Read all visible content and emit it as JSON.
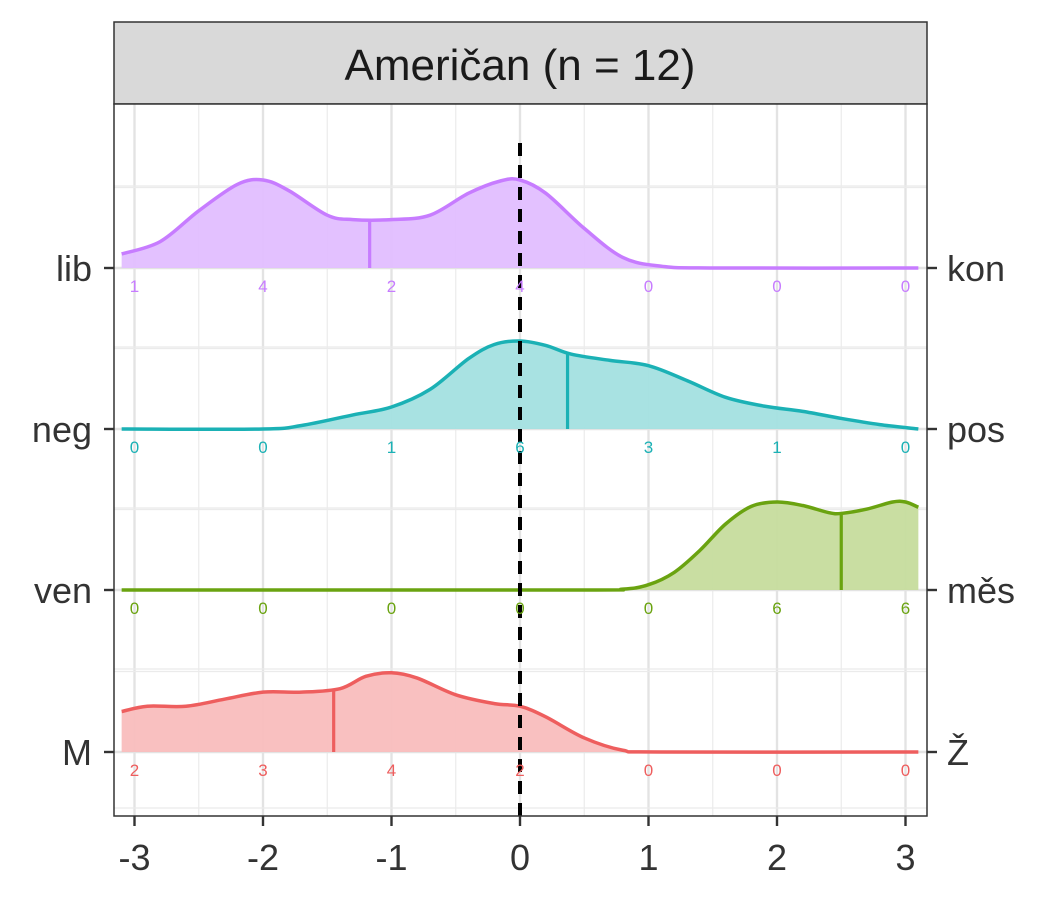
{
  "chart_data": {
    "type": "ridgeline",
    "title": "Američan (n = 12)",
    "xlim": [
      -3.1,
      3.1
    ],
    "x_ticks": [
      -3,
      -2,
      -1,
      0,
      1,
      2,
      3
    ],
    "x_tick_labels": [
      "-3",
      "-2",
      "-1",
      "0",
      "1",
      "2",
      "3"
    ],
    "reference_line_x": 0,
    "count_positions": [
      -3,
      -2,
      -1,
      0,
      1,
      2,
      3
    ],
    "rows": [
      {
        "name": "lib-kon",
        "left_label": "lib",
        "right_label": "kon",
        "color": "#C77CFF",
        "fill": "#E1BEFF",
        "mean": -1.17,
        "counts": [
          1,
          4,
          2,
          4,
          0,
          0,
          0
        ],
        "density": [
          [
            -3.1,
            0.16
          ],
          [
            -2.8,
            0.3
          ],
          [
            -2.5,
            0.65
          ],
          [
            -2.2,
            0.95
          ],
          [
            -2.0,
            1.0
          ],
          [
            -1.8,
            0.88
          ],
          [
            -1.5,
            0.6
          ],
          [
            -1.3,
            0.55
          ],
          [
            -1.0,
            0.55
          ],
          [
            -0.7,
            0.6
          ],
          [
            -0.4,
            0.85
          ],
          [
            -0.15,
            0.99
          ],
          [
            0.0,
            1.0
          ],
          [
            0.2,
            0.85
          ],
          [
            0.5,
            0.45
          ],
          [
            0.8,
            0.12
          ],
          [
            1.1,
            0.02
          ],
          [
            1.5,
            0.0
          ],
          [
            3.1,
            0.0
          ]
        ]
      },
      {
        "name": "neg-pos",
        "left_label": "neg",
        "right_label": "pos",
        "color": "#1BB1B5",
        "fill": "#A3E0E0",
        "mean": 0.37,
        "counts": [
          0,
          0,
          1,
          6,
          3,
          1,
          0
        ],
        "density": [
          [
            -3.1,
            0.0
          ],
          [
            -2.0,
            0.0
          ],
          [
            -1.7,
            0.04
          ],
          [
            -1.3,
            0.16
          ],
          [
            -1.0,
            0.25
          ],
          [
            -0.7,
            0.45
          ],
          [
            -0.4,
            0.8
          ],
          [
            -0.2,
            0.96
          ],
          [
            0.0,
            1.0
          ],
          [
            0.2,
            0.95
          ],
          [
            0.4,
            0.85
          ],
          [
            0.7,
            0.78
          ],
          [
            1.0,
            0.72
          ],
          [
            1.3,
            0.55
          ],
          [
            1.6,
            0.36
          ],
          [
            1.9,
            0.26
          ],
          [
            2.2,
            0.2
          ],
          [
            2.5,
            0.12
          ],
          [
            2.8,
            0.05
          ],
          [
            3.1,
            0.0
          ]
        ]
      },
      {
        "name": "ven-mes",
        "left_label": "ven",
        "right_label": "měs",
        "color": "#6AA310",
        "fill": "#C6DC9D",
        "mean": 2.5,
        "counts": [
          0,
          0,
          0,
          0,
          0,
          6,
          6
        ],
        "density": [
          [
            -3.1,
            0.0
          ],
          [
            0.4,
            0.0
          ],
          [
            0.8,
            0.01
          ],
          [
            1.0,
            0.06
          ],
          [
            1.2,
            0.2
          ],
          [
            1.4,
            0.45
          ],
          [
            1.6,
            0.75
          ],
          [
            1.8,
            0.95
          ],
          [
            2.0,
            1.0
          ],
          [
            2.2,
            0.96
          ],
          [
            2.4,
            0.88
          ],
          [
            2.5,
            0.87
          ],
          [
            2.7,
            0.92
          ],
          [
            2.9,
            1.0
          ],
          [
            3.0,
            1.0
          ],
          [
            3.1,
            0.94
          ]
        ]
      },
      {
        "name": "M-Z",
        "left_label": "M",
        "right_label": "Ž",
        "color": "#EE5E5E",
        "fill": "#F9BDBD",
        "mean": -1.45,
        "counts": [
          2,
          3,
          4,
          2,
          0,
          0,
          0
        ],
        "density": [
          [
            -3.1,
            0.46
          ],
          [
            -2.9,
            0.52
          ],
          [
            -2.6,
            0.52
          ],
          [
            -2.3,
            0.6
          ],
          [
            -2.0,
            0.68
          ],
          [
            -1.7,
            0.68
          ],
          [
            -1.4,
            0.72
          ],
          [
            -1.2,
            0.86
          ],
          [
            -1.0,
            0.9
          ],
          [
            -0.8,
            0.84
          ],
          [
            -0.5,
            0.65
          ],
          [
            -0.2,
            0.55
          ],
          [
            0.0,
            0.52
          ],
          [
            0.2,
            0.4
          ],
          [
            0.5,
            0.16
          ],
          [
            0.8,
            0.02
          ],
          [
            1.1,
            0.0
          ],
          [
            3.1,
            0.0
          ]
        ]
      }
    ]
  }
}
